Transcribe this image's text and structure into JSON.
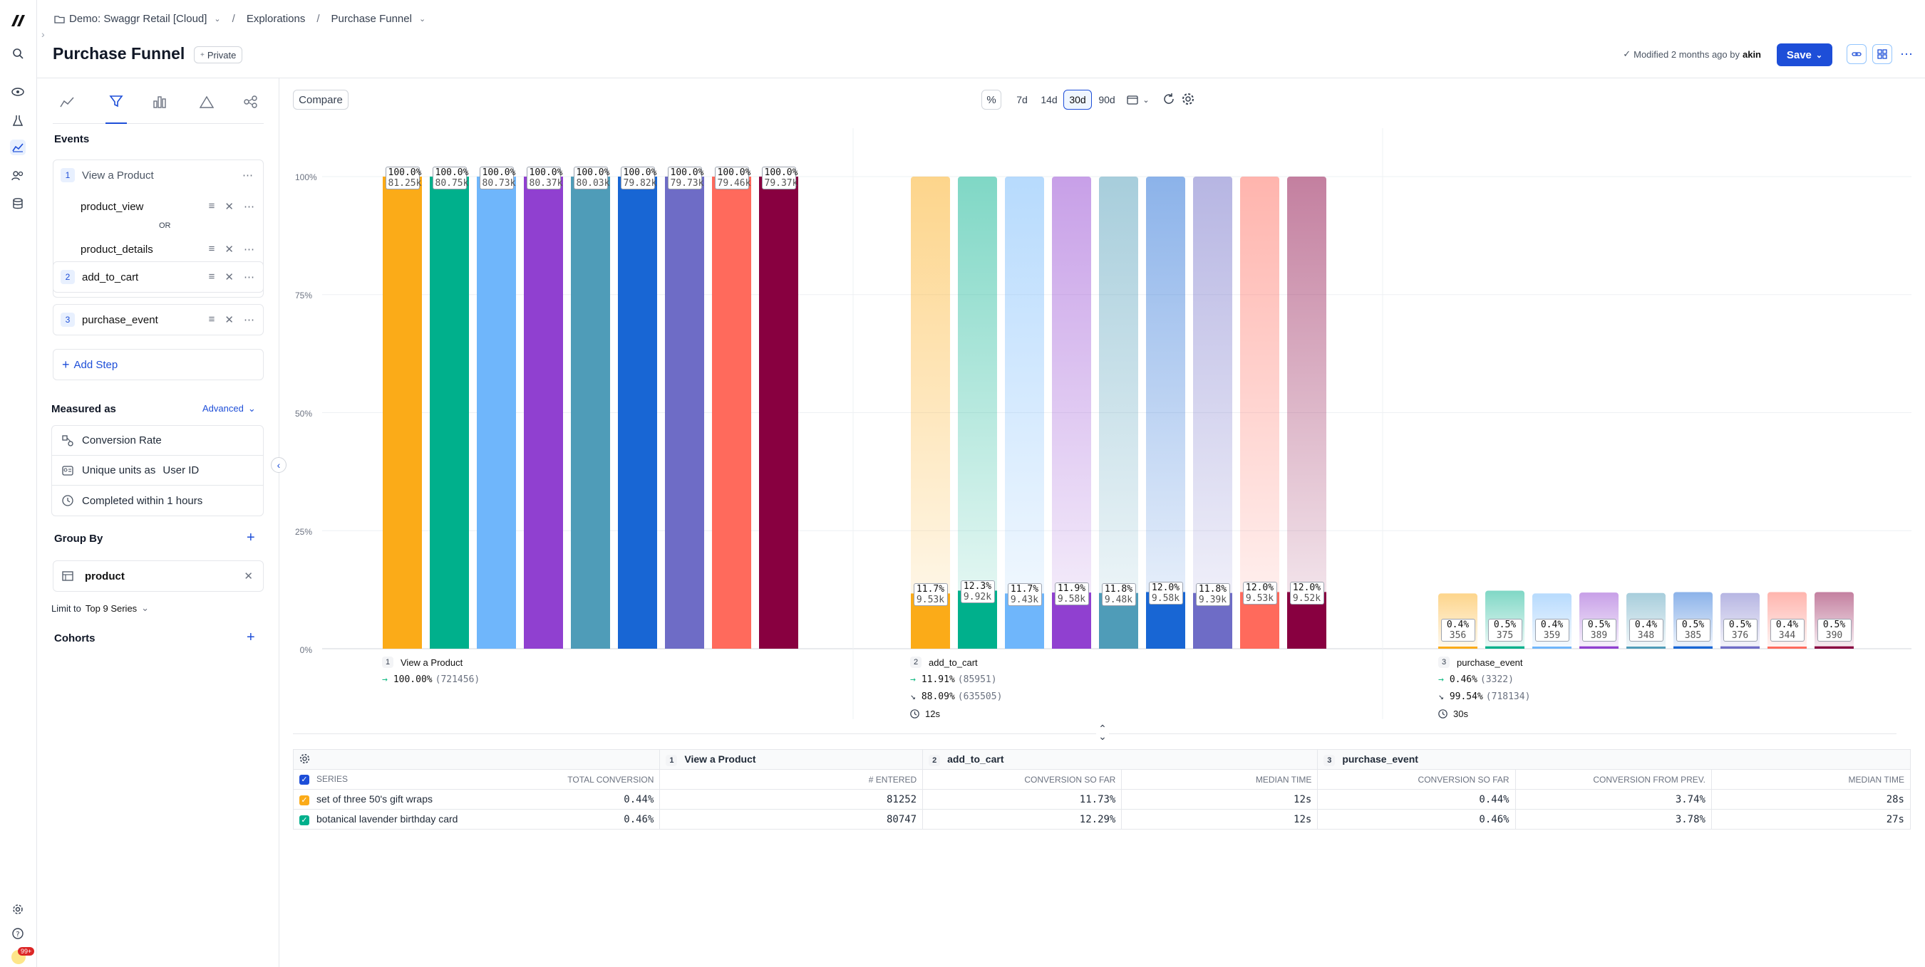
{
  "breadcrumb": {
    "workspace": "Demo: Swaggr Retail [Cloud]",
    "sep1": "/",
    "section": "Explorations",
    "sep2": "/",
    "page": "Purchase Funnel"
  },
  "header": {
    "title": "Purchase Funnel",
    "visibility": "Private",
    "modified_text": "Modified 2 months ago by",
    "modified_by": "akin",
    "save_label": "Save"
  },
  "sidebar": {
    "notification_badge": "99+"
  },
  "query": {
    "events_label": "Events",
    "steps": [
      {
        "num": "1",
        "name": "View a Product",
        "events": [
          "product_view",
          "product_details"
        ],
        "or_label": "OR"
      },
      {
        "num": "2",
        "name": "add_to_cart"
      },
      {
        "num": "3",
        "name": "purchase_event"
      }
    ],
    "add_step_label": "Add Step",
    "measured_as_label": "Measured as",
    "advanced_label": "Advanced",
    "measure_rows": {
      "conversion": "Conversion Rate",
      "unique_prefix": "Unique units as",
      "unique_value": "User ID",
      "completed": "Completed within 1 hours"
    },
    "group_by_label": "Group By",
    "group_by_value": "product",
    "limit_prefix": "Limit to",
    "limit_value": "Top 9 Series",
    "cohorts_label": "Cohorts"
  },
  "toolbar": {
    "compare_label": "Compare",
    "percent_label": "%",
    "ranges": [
      "7d",
      "14d",
      "30d",
      "90d"
    ],
    "selected_range": "30d"
  },
  "colors": {
    "accent": "#1d4ed8",
    "series": [
      "#fbab18",
      "#00b08c",
      "#6fb6fb",
      "#9040d0",
      "#4f9cb8",
      "#1866d4",
      "#6e6cc6",
      "#ff6a5c",
      "#880040"
    ]
  },
  "chart_data": {
    "type": "bar",
    "ylabels": [
      "100%",
      "75%",
      "50%",
      "25%",
      "0%"
    ],
    "ylim": [
      0,
      100
    ],
    "categories": [
      "View a Product",
      "add_to_cart",
      "purchase_event"
    ],
    "series_count": 9,
    "steps": [
      {
        "num": "1",
        "name": "View a Product",
        "pct_labels": [
          "100.0%",
          "100.0%",
          "100.0%",
          "100.0%",
          "100.0%",
          "100.0%",
          "100.0%",
          "100.0%",
          "100.0%"
        ],
        "count_labels": [
          "81.25k",
          "80.75k",
          "80.73k",
          "80.37k",
          "80.03k",
          "79.82k",
          "79.73k",
          "79.46k",
          "79.37k"
        ],
        "values": [
          100,
          100,
          100,
          100,
          100,
          100,
          100,
          100,
          100
        ],
        "conv_label": "100.00%",
        "conv_count": "(721456)"
      },
      {
        "num": "2",
        "name": "add_to_cart",
        "pct_labels": [
          "11.7%",
          "12.3%",
          "11.7%",
          "11.9%",
          "11.8%",
          "12.0%",
          "11.8%",
          "12.0%",
          "12.0%"
        ],
        "count_labels": [
          "9.53k",
          "9.92k",
          "9.43k",
          "9.58k",
          "9.48k",
          "9.58k",
          "9.39k",
          "9.53k",
          "9.52k"
        ],
        "values": [
          11.7,
          12.3,
          11.7,
          11.9,
          11.8,
          12.0,
          11.8,
          12.0,
          12.0
        ],
        "conv_label": "11.91%",
        "conv_count": "(85951)",
        "drop_label": "88.09%",
        "drop_count": "(635505)",
        "time_label": "12s"
      },
      {
        "num": "3",
        "name": "purchase_event",
        "pct_labels": [
          "0.4%",
          "0.5%",
          "0.4%",
          "0.5%",
          "0.4%",
          "0.5%",
          "0.5%",
          "0.4%",
          "0.5%"
        ],
        "count_labels": [
          "356",
          "375",
          "359",
          "389",
          "348",
          "385",
          "376",
          "344",
          "390"
        ],
        "values": [
          0.4,
          0.5,
          0.4,
          0.5,
          0.4,
          0.5,
          0.5,
          0.4,
          0.5
        ],
        "conv_label": "0.46%",
        "conv_count": "(3322)",
        "drop_label": "99.54%",
        "drop_count": "(718134)",
        "time_label": "30s"
      }
    ]
  },
  "table": {
    "step_headers": [
      {
        "num": "1",
        "name": "View a Product"
      },
      {
        "num": "2",
        "name": "add_to_cart"
      },
      {
        "num": "3",
        "name": "purchase_event"
      }
    ],
    "columns": [
      "SERIES",
      "TOTAL CONVERSION",
      "# ENTERED",
      "CONVERSION SO FAR",
      "MEDIAN TIME",
      "CONVERSION SO FAR",
      "CONVERSION FROM PREV.",
      "MEDIAN TIME"
    ],
    "rows": [
      {
        "series": "set of three 50's gift wraps",
        "total": "0.44%",
        "entered": "81252",
        "s2_conv": "11.73%",
        "s2_time": "12s",
        "s3_conv": "0.44%",
        "s3_prev": "3.74%",
        "s3_time": "28s"
      },
      {
        "series": "botanical lavender birthday card",
        "total": "0.46%",
        "entered": "80747",
        "s2_conv": "12.29%",
        "s2_time": "12s",
        "s3_conv": "0.46%",
        "s3_prev": "3.78%",
        "s3_time": "27s"
      }
    ]
  }
}
